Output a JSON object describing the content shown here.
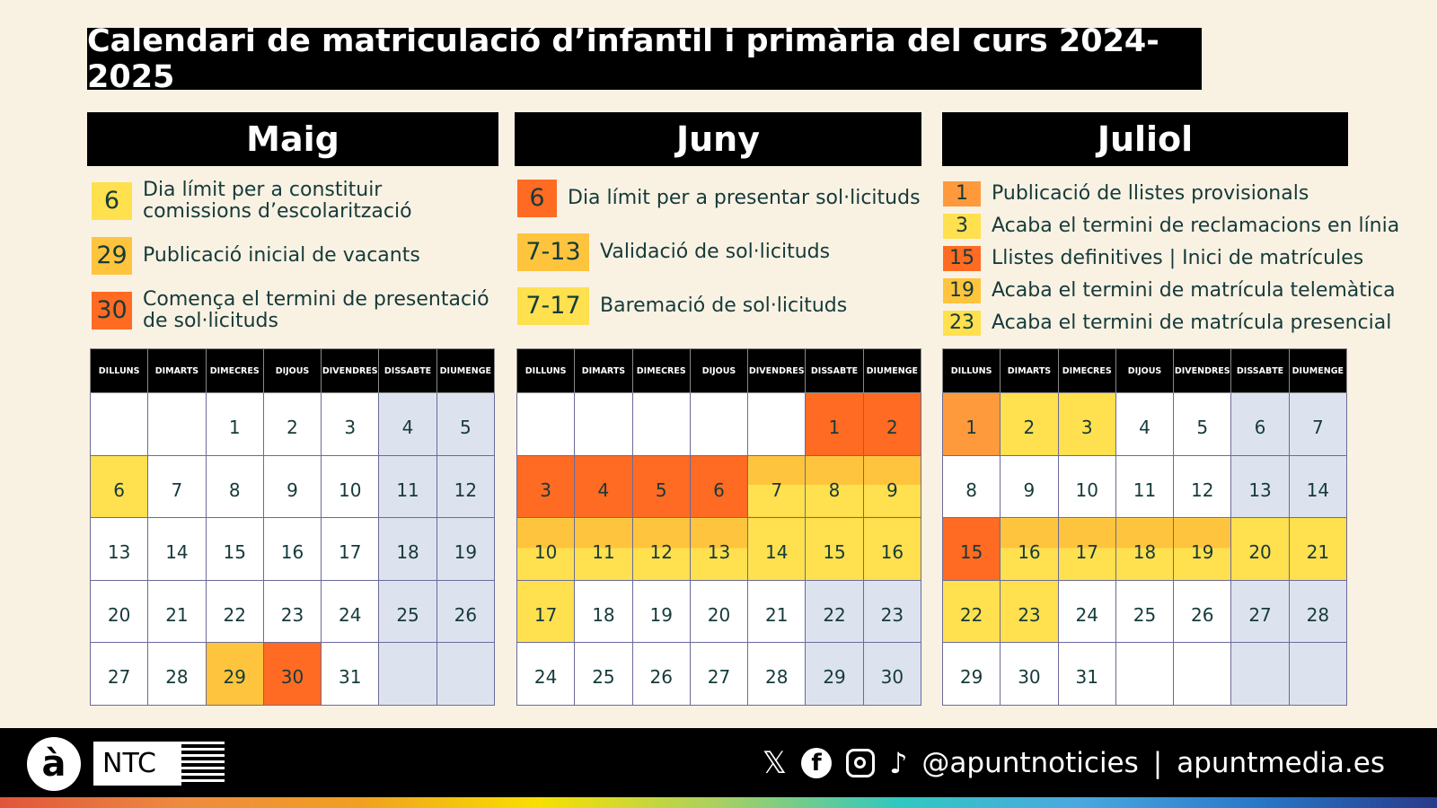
{
  "title": "Calendari de matriculació d’infantil i primària del curs 2024-2025",
  "weekdays": [
    "DILLUNS",
    "DIMARTS",
    "DIMECRES",
    "DIJOUS",
    "DIVENDRES",
    "DISSABTE",
    "DIUMENGE"
  ],
  "colors": {
    "orange": "#ff6b22",
    "amber": "#ffc43d",
    "yellow": "#ffe04f",
    "light_orange": "#ff9a3c",
    "weekend": "#dde3ee",
    "background": "#f9f2e3"
  },
  "months": [
    {
      "name": "Maig",
      "legend": [
        {
          "badge": "6",
          "text": "Dia límit per a constituir comissions d’escolarització",
          "color": "y"
        },
        {
          "badge": "29",
          "text": "Publicació inicial de vacants",
          "color": "a"
        },
        {
          "badge": "30",
          "text": "Comença el termini de presentació de sol·licituds",
          "color": "o"
        }
      ],
      "weeks": [
        [
          [
            "",
            ""
          ],
          [
            "",
            ""
          ],
          [
            "1",
            ""
          ],
          [
            "2",
            ""
          ],
          [
            "3",
            ""
          ],
          [
            "4",
            "w"
          ],
          [
            "5",
            "w"
          ]
        ],
        [
          [
            "6",
            "y"
          ],
          [
            "7",
            ""
          ],
          [
            "8",
            ""
          ],
          [
            "9",
            ""
          ],
          [
            "10",
            ""
          ],
          [
            "11",
            "w"
          ],
          [
            "12",
            "w"
          ]
        ],
        [
          [
            "13",
            ""
          ],
          [
            "14",
            ""
          ],
          [
            "15",
            ""
          ],
          [
            "16",
            ""
          ],
          [
            "17",
            ""
          ],
          [
            "18",
            "w"
          ],
          [
            "19",
            "w"
          ]
        ],
        [
          [
            "20",
            ""
          ],
          [
            "21",
            ""
          ],
          [
            "22",
            ""
          ],
          [
            "23",
            ""
          ],
          [
            "24",
            ""
          ],
          [
            "25",
            "w"
          ],
          [
            "26",
            "w"
          ]
        ],
        [
          [
            "27",
            ""
          ],
          [
            "28",
            ""
          ],
          [
            "29",
            "a"
          ],
          [
            "30",
            "o"
          ],
          [
            "31",
            ""
          ],
          [
            "",
            "w"
          ],
          [
            "",
            "w"
          ]
        ]
      ]
    },
    {
      "name": "Juny",
      "legend": [
        {
          "badge": "6",
          "text": "Dia límit per a presentar sol·licituds",
          "color": "o"
        },
        {
          "badge": "7-13",
          "text": "Validació de sol·licituds",
          "color": "a"
        },
        {
          "badge": "7-17",
          "text": "Baremació de sol·licituds",
          "color": "y"
        }
      ],
      "weeks": [
        [
          [
            "",
            ""
          ],
          [
            "",
            ""
          ],
          [
            "",
            ""
          ],
          [
            "",
            ""
          ],
          [
            "",
            ""
          ],
          [
            "1",
            "o"
          ],
          [
            "2",
            "o"
          ]
        ],
        [
          [
            "3",
            "o"
          ],
          [
            "4",
            "o"
          ],
          [
            "5",
            "o"
          ],
          [
            "6",
            "o"
          ],
          [
            "7",
            "ay"
          ],
          [
            "8",
            "ay"
          ],
          [
            "9",
            "ay"
          ]
        ],
        [
          [
            "10",
            "ay"
          ],
          [
            "11",
            "ay"
          ],
          [
            "12",
            "ay"
          ],
          [
            "13",
            "ay"
          ],
          [
            "14",
            "y"
          ],
          [
            "15",
            "y"
          ],
          [
            "16",
            "y"
          ]
        ],
        [
          [
            "17",
            "y"
          ],
          [
            "18",
            ""
          ],
          [
            "19",
            ""
          ],
          [
            "20",
            ""
          ],
          [
            "21",
            ""
          ],
          [
            "22",
            "w"
          ],
          [
            "23",
            "w"
          ]
        ],
        [
          [
            "24",
            ""
          ],
          [
            "25",
            ""
          ],
          [
            "26",
            ""
          ],
          [
            "27",
            ""
          ],
          [
            "28",
            ""
          ],
          [
            "29",
            "w"
          ],
          [
            "30",
            "w"
          ]
        ]
      ]
    },
    {
      "name": "Juliol",
      "legend": [
        {
          "badge": "1",
          "text": "Publicació de llistes provisionals",
          "color": "lo"
        },
        {
          "badge": "3",
          "text": "Acaba el termini de reclamacions en línia",
          "color": "y"
        },
        {
          "badge": "15",
          "text": "Llistes definitives | Inici de matrícules",
          "color": "o"
        },
        {
          "badge": "19",
          "text": "Acaba el termini de matrícula telemàtica",
          "color": "a"
        },
        {
          "badge": "23",
          "text": "Acaba el termini de matrícula presencial",
          "color": "y"
        }
      ],
      "weeks": [
        [
          [
            "1",
            "lo"
          ],
          [
            "2",
            "y"
          ],
          [
            "3",
            "y"
          ],
          [
            "4",
            ""
          ],
          [
            "5",
            ""
          ],
          [
            "6",
            "w"
          ],
          [
            "7",
            "w"
          ]
        ],
        [
          [
            "8",
            ""
          ],
          [
            "9",
            ""
          ],
          [
            "10",
            ""
          ],
          [
            "11",
            ""
          ],
          [
            "12",
            ""
          ],
          [
            "13",
            "w"
          ],
          [
            "14",
            "w"
          ]
        ],
        [
          [
            "15",
            "o"
          ],
          [
            "16",
            "ay"
          ],
          [
            "17",
            "ay"
          ],
          [
            "18",
            "ay"
          ],
          [
            "19",
            "ay"
          ],
          [
            "20",
            "y"
          ],
          [
            "21",
            "y"
          ]
        ],
        [
          [
            "22",
            "y"
          ],
          [
            "23",
            "y"
          ],
          [
            "24",
            ""
          ],
          [
            "25",
            ""
          ],
          [
            "26",
            ""
          ],
          [
            "27",
            "w"
          ],
          [
            "28",
            "w"
          ]
        ],
        [
          [
            "29",
            ""
          ],
          [
            "30",
            ""
          ],
          [
            "31",
            ""
          ],
          [
            "",
            ""
          ],
          [
            "",
            ""
          ],
          [
            "",
            "w"
          ],
          [
            "",
            "w"
          ]
        ]
      ]
    }
  ],
  "footer": {
    "logo_letter": "à",
    "brand": "NTC",
    "social_icons": [
      "x-icon",
      "facebook-icon",
      "instagram-icon",
      "tiktok-icon"
    ],
    "handle": "@apuntnoticies",
    "separator": "|",
    "website": "apuntmedia.es"
  }
}
